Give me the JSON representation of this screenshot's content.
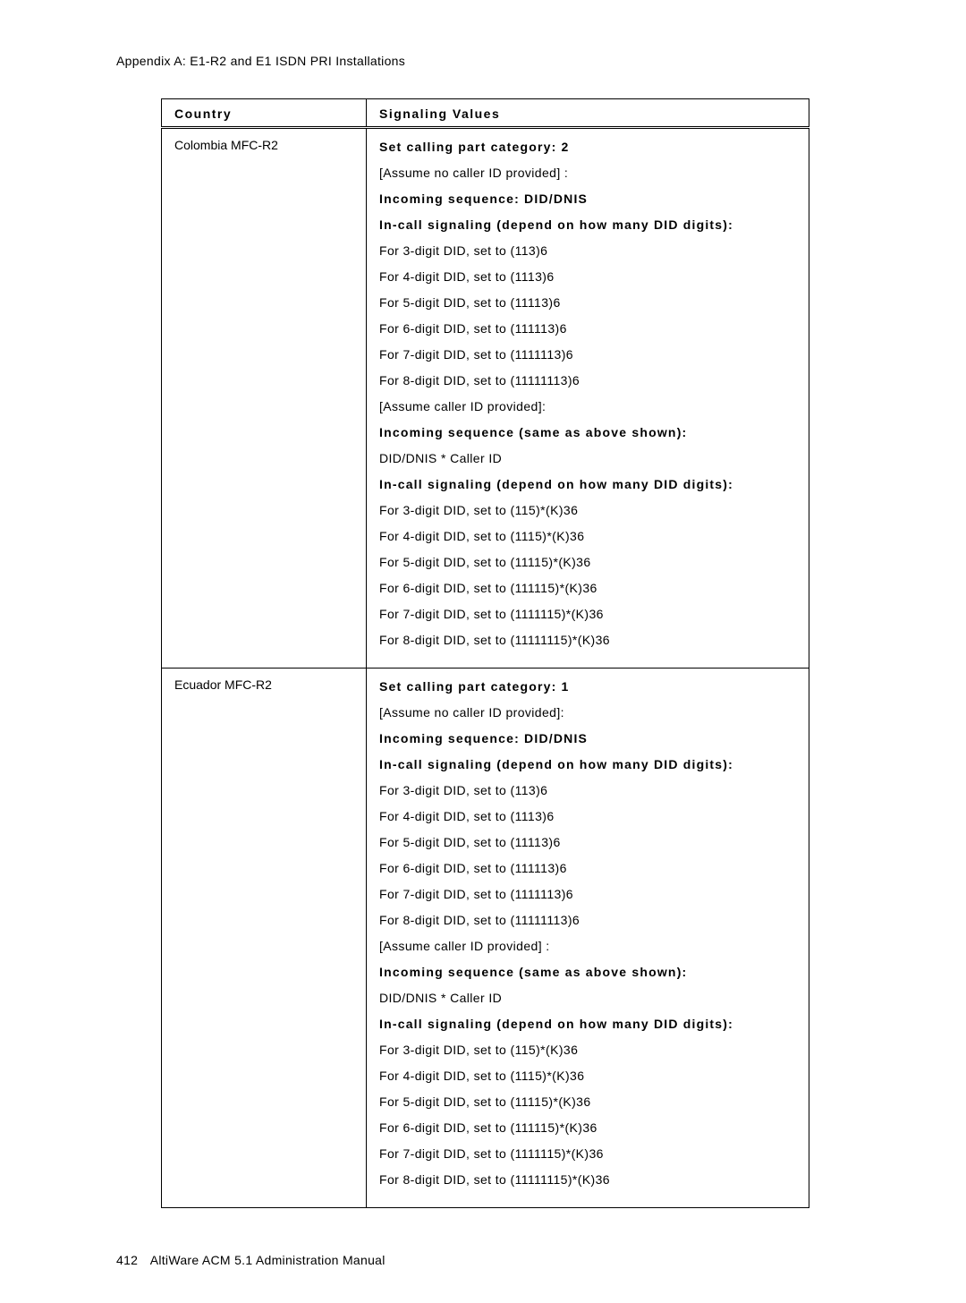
{
  "header": {
    "appendix": "Appendix A:  E1-R2 and E1 ISDN PRI Installations"
  },
  "table": {
    "columns": [
      "Country",
      "Signaling Values"
    ],
    "rows": [
      {
        "country": "Colombia MFC-R2",
        "lines": [
          {
            "text": "Set calling part category: 2",
            "bold": true
          },
          {
            "text": "[Assume no caller ID provided] :",
            "bold": false
          },
          {
            "text": "Incoming sequence:  DID/DNIS",
            "bold": true
          },
          {
            "text": "In-call signaling (depend on how many DID digits):",
            "bold": true
          },
          {
            "text": "For 3-digit DID, set to (113)6",
            "bold": false
          },
          {
            "text": "For 4-digit DID, set to (1113)6",
            "bold": false
          },
          {
            "text": "For 5-digit DID, set to (11113)6",
            "bold": false
          },
          {
            "text": "For 6-digit DID, set to (111113)6",
            "bold": false
          },
          {
            "text": "For 7-digit DID, set to (1111113)6",
            "bold": false
          },
          {
            "text": "For 8-digit DID, set to (11111113)6",
            "bold": false
          },
          {
            "text": "[Assume caller ID provided]:",
            "bold": false
          },
          {
            "text": "Incoming sequence (same as above shown):",
            "bold": true
          },
          {
            "text": "DID/DNIS  *   Caller ID",
            "bold": false
          },
          {
            "text": "In-call signaling (depend on how many DID digits):",
            "bold": true
          },
          {
            "text": "For 3-digit DID, set to (115)*(K)36",
            "bold": false
          },
          {
            "text": "For 4-digit DID, set to (1115)*(K)36",
            "bold": false
          },
          {
            "text": "For 5-digit DID, set to (11115)*(K)36",
            "bold": false
          },
          {
            "text": "For 6-digit DID, set to (111115)*(K)36",
            "bold": false
          },
          {
            "text": "For 7-digit DID, set to (1111115)*(K)36",
            "bold": false
          },
          {
            "text": "For 8-digit DID, set to (11111115)*(K)36",
            "bold": false
          }
        ]
      },
      {
        "country": "Ecuador MFC-R2",
        "lines": [
          {
            "text": "Set calling part category: 1",
            "bold": true
          },
          {
            "text": "[Assume no caller ID provided]:",
            "bold": false
          },
          {
            "text": "Incoming sequence:  DID/DNIS",
            "bold": true
          },
          {
            "text": "In-call signaling (depend on how many DID digits):",
            "bold": true
          },
          {
            "text": "For 3-digit DID, set to (113)6",
            "bold": false
          },
          {
            "text": "For 4-digit DID, set to (1113)6",
            "bold": false
          },
          {
            "text": "For 5-digit DID, set to (11113)6",
            "bold": false
          },
          {
            "text": "For 6-digit DID, set to (111113)6",
            "bold": false
          },
          {
            "text": "For 7-digit DID, set to (1111113)6",
            "bold": false
          },
          {
            "text": "For 8-digit DID, set to (11111113)6",
            "bold": false
          },
          {
            "text": "[Assume caller ID provided] :",
            "bold": false
          },
          {
            "text": "Incoming sequence (same as above shown):",
            "bold": true
          },
          {
            "text": "DID/DNIS  *   Caller ID",
            "bold": false
          },
          {
            "text": "In-call signaling (depend on how many DID digits):",
            "bold": true
          },
          {
            "text": "For 3-digit DID, set to (115)*(K)36",
            "bold": false
          },
          {
            "text": "For 4-digit DID, set to (1115)*(K)36",
            "bold": false
          },
          {
            "text": "For 5-digit DID, set to (11115)*(K)36",
            "bold": false
          },
          {
            "text": "For 6-digit DID, set to (111115)*(K)36",
            "bold": false
          },
          {
            "text": "For 7-digit DID, set to (1111115)*(K)36",
            "bold": false
          },
          {
            "text": "For 8-digit DID, set to (11111115)*(K)36",
            "bold": false
          }
        ]
      }
    ]
  },
  "footer": {
    "page": "412",
    "title": "AltiWare ACM 5.1 Administration Manual"
  }
}
